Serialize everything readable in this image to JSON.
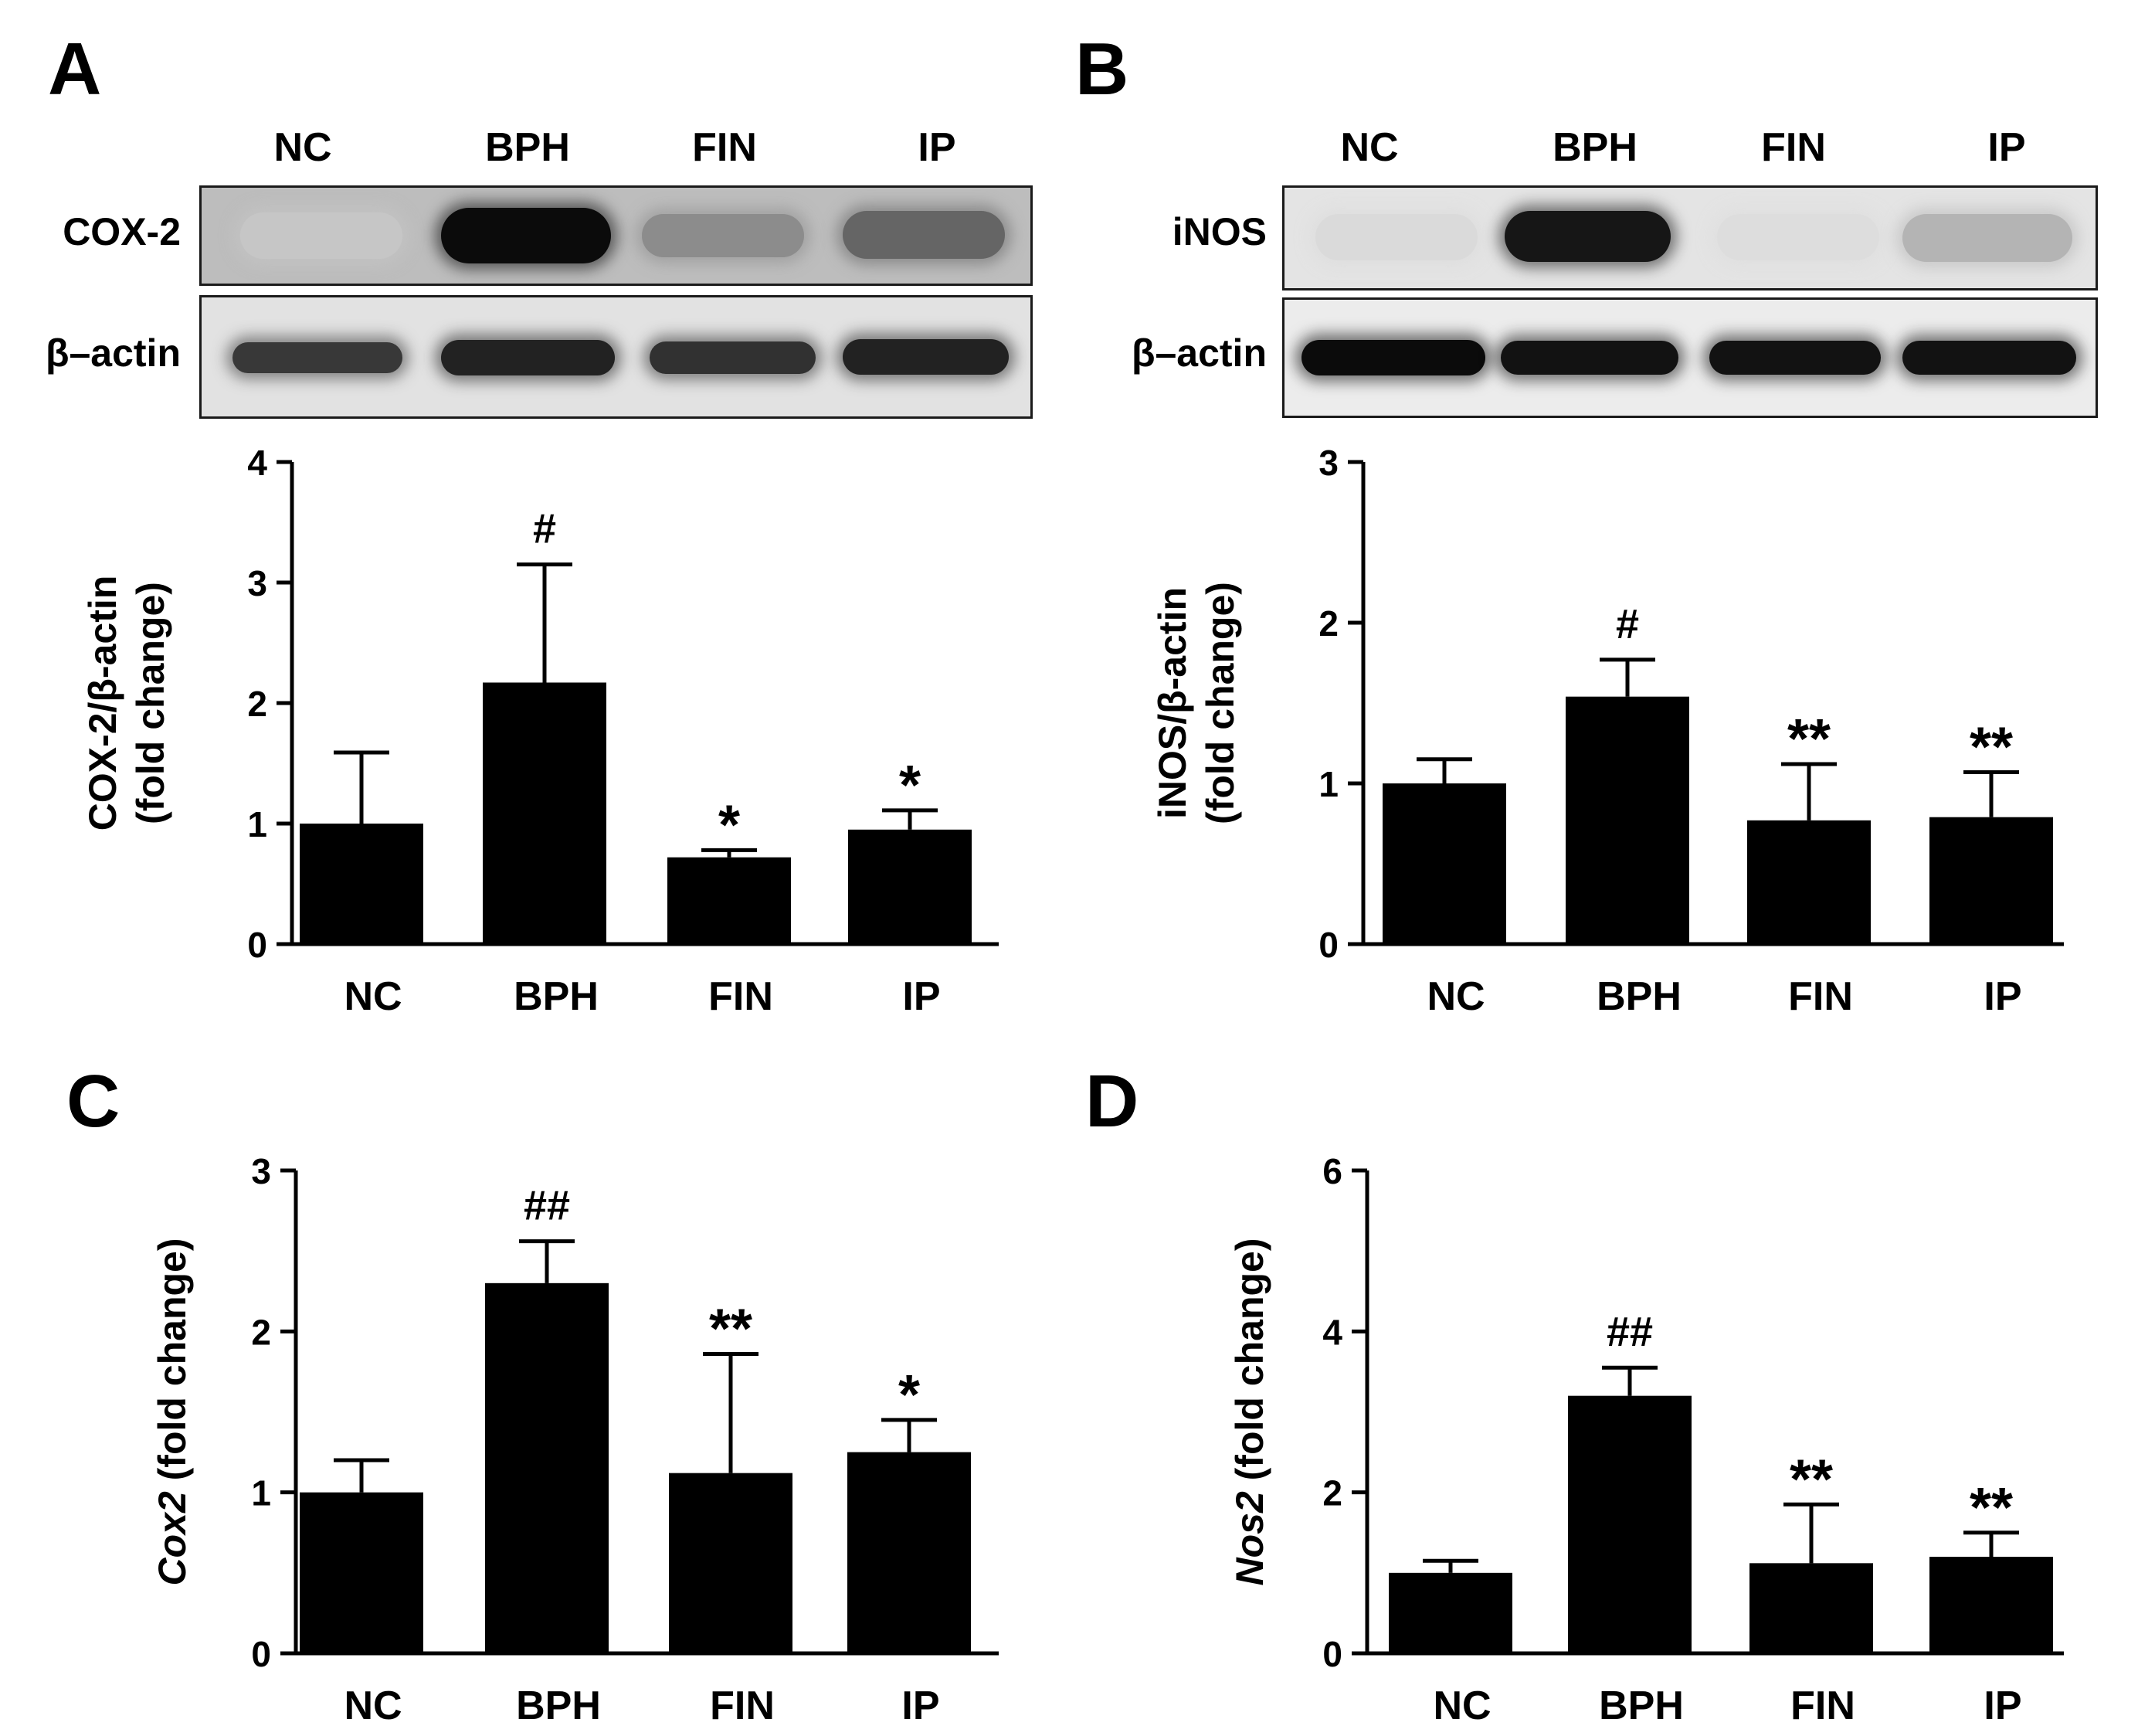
{
  "panels": {
    "A": {
      "letter": "A",
      "lane_labels": [
        "NC",
        "BPH",
        "FIN",
        "IP"
      ],
      "target_label": "COX-2",
      "loading_label": "β–actin",
      "target_band_intensity": [
        0.12,
        0.95,
        0.38,
        0.55
      ],
      "loading_band_intensity": [
        0.75,
        0.85,
        0.78,
        0.85
      ]
    },
    "B": {
      "letter": "B",
      "lane_labels": [
        "NC",
        "BPH",
        "FIN",
        "IP"
      ],
      "target_label": "iNOS",
      "loading_label": "β–actin",
      "target_band_intensity": [
        0.03,
        0.9,
        0.02,
        0.2
      ],
      "loading_band_intensity": [
        0.95,
        0.92,
        0.92,
        0.92
      ]
    },
    "C": {
      "letter": "C"
    },
    "D": {
      "letter": "D"
    }
  },
  "chart_data": [
    {
      "panel": "A",
      "type": "bar",
      "categories": [
        "NC",
        "BPH",
        "FIN",
        "IP"
      ],
      "values": [
        1.0,
        2.17,
        0.72,
        0.95
      ],
      "error_upper": [
        1.59,
        3.15,
        0.78,
        1.11
      ],
      "annotations": [
        "",
        "#",
        "*",
        "*"
      ],
      "ylabel_lines": [
        "COX-2/β-actin",
        "(fold change)"
      ],
      "ylabel_italic_prefix": "",
      "ylim": [
        0,
        4
      ],
      "yticks": [
        "0",
        "1",
        "2",
        "3",
        "4"
      ],
      "bar_color": "#000000"
    },
    {
      "panel": "B",
      "type": "bar",
      "categories": [
        "NC",
        "BPH",
        "FIN",
        "IP"
      ],
      "values": [
        1.0,
        1.54,
        0.77,
        0.79
      ],
      "error_upper": [
        1.15,
        1.77,
        1.12,
        1.07
      ],
      "annotations": [
        "",
        "#",
        "**",
        "**"
      ],
      "ylabel_lines": [
        "iNOS/β-actin",
        "(fold change)"
      ],
      "ylabel_italic_prefix": "",
      "ylim": [
        0,
        3
      ],
      "yticks": [
        "0",
        "1",
        "2",
        "3"
      ],
      "bar_color": "#000000"
    },
    {
      "panel": "C",
      "type": "bar",
      "categories": [
        "NC",
        "BPH",
        "FIN",
        "IP"
      ],
      "values": [
        1.0,
        2.3,
        1.12,
        1.25
      ],
      "error_upper": [
        1.2,
        2.56,
        1.86,
        1.45
      ],
      "annotations": [
        "",
        "##",
        "**",
        "*"
      ],
      "ylabel_lines": [
        " (fold change)"
      ],
      "ylabel_italic_prefix": "Cox2",
      "ylim": [
        0,
        3
      ],
      "yticks": [
        "0",
        "1",
        "2",
        "3"
      ],
      "bar_color": "#000000"
    },
    {
      "panel": "D",
      "type": "bar",
      "categories": [
        "NC",
        "BPH",
        "FIN",
        "IP"
      ],
      "values": [
        1.0,
        3.2,
        1.12,
        1.2
      ],
      "error_upper": [
        1.15,
        3.55,
        1.85,
        1.5
      ],
      "annotations": [
        "",
        "##",
        "**",
        "**"
      ],
      "ylabel_lines": [
        " (fold change)"
      ],
      "ylabel_italic_prefix": "Nos2",
      "ylim": [
        0,
        6
      ],
      "yticks": [
        "0",
        "2",
        "4",
        "6"
      ],
      "bar_color": "#000000"
    }
  ]
}
